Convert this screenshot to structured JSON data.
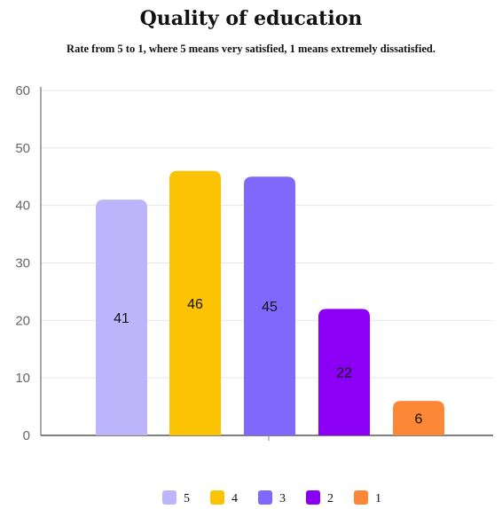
{
  "chart_data": {
    "type": "bar",
    "title": "Quality of education",
    "subtitle": "Rate from 5 to 1, where 5 means very satisfied, 1 means extremely dissatisfied.",
    "categories": [
      "5",
      "4",
      "3",
      "2",
      "1"
    ],
    "values": [
      41,
      46,
      45,
      22,
      6
    ],
    "colors": [
      "#bcb5fc",
      "#fbc304",
      "#7f68fb",
      "#8b00f5",
      "#fb8737"
    ],
    "ylim": [
      0,
      60
    ],
    "yticks": [
      0,
      10,
      20,
      30,
      40,
      50,
      60
    ],
    "grid": true,
    "legend_position": "bottom",
    "xlabel": "",
    "ylabel": ""
  }
}
